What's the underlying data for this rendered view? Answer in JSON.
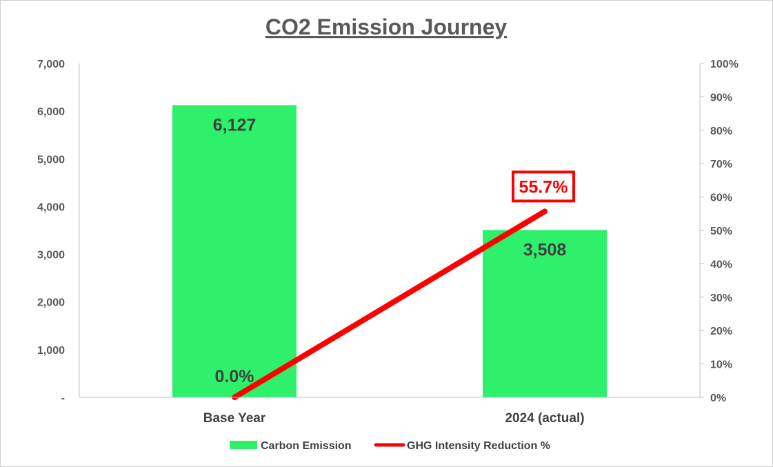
{
  "colors": {
    "bar": "#2ef06b",
    "line": "#ff0000",
    "axis": "#bfbfbf",
    "text": "#404040",
    "title": "#595959"
  },
  "chart_data": {
    "type": "bar",
    "title": "CO2 Emission Journey",
    "categories": [
      "Base Year",
      "2024 (actual)"
    ],
    "series": [
      {
        "name": "Carbon Emission",
        "type": "bar",
        "axis": "left",
        "values": [
          6127,
          3508
        ],
        "labels": [
          "6,127",
          "3,508"
        ]
      },
      {
        "name": "GHG Intensity Reduction %",
        "type": "line",
        "axis": "right",
        "values": [
          0.0,
          55.7
        ],
        "labels": [
          "0.0%",
          "55.7%"
        ]
      }
    ],
    "left_axis": {
      "ylim": [
        0,
        7000
      ],
      "ticks": [
        "-",
        "1,000",
        "2,000",
        "3,000",
        "4,000",
        "5,000",
        "6,000",
        "7,000"
      ]
    },
    "right_axis": {
      "ylim": [
        0,
        100
      ],
      "ticks": [
        "0%",
        "10%",
        "20%",
        "30%",
        "40%",
        "50%",
        "60%",
        "70%",
        "80%",
        "90%",
        "100%"
      ]
    },
    "grid": false,
    "legend": "bottom"
  }
}
